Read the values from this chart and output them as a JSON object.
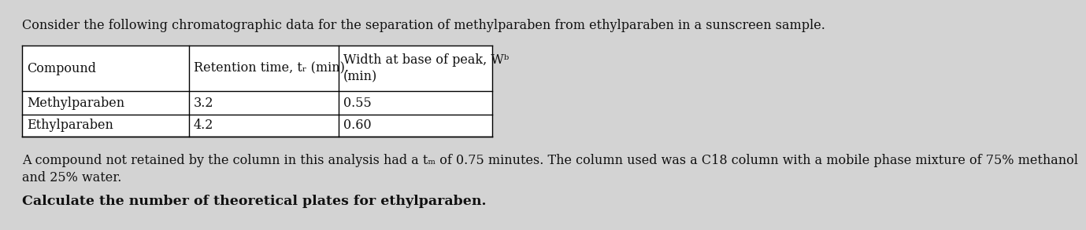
{
  "title_text": "Consider the following chromatographic data for the separation of methylparaben from ethylparaben in a sunscreen sample.",
  "col_headers_line1": [
    "Compound",
    "Retention time, tᵣ (min).",
    "Width at base of peak, Wᵇ"
  ],
  "col_headers_line2": [
    "",
    "",
    "(min)"
  ],
  "rows": [
    [
      "Methylparaben",
      "3.2",
      "0.55"
    ],
    [
      "Ethylparaben",
      "4.2",
      "0.60"
    ]
  ],
  "body_line1": "A compound not retained by the column in this analysis had a tₘ of 0.75 minutes. The column used was a C18 column with a mobile phase mixture of 75% methanol",
  "body_line2": "and 25% water.",
  "bold_text": "Calculate the number of theoretical plates for ethylparaben.",
  "bg_color": "#d3d3d3",
  "text_color": "#111111",
  "title_fontsize": 11.5,
  "body_fontsize": 11.5,
  "bold_fontsize": 12.5,
  "table_fontsize": 11.5
}
